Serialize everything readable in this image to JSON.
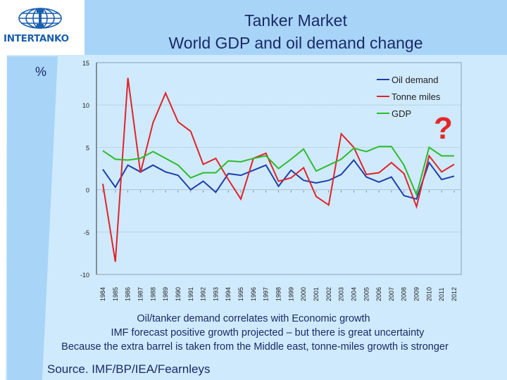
{
  "header": {
    "logo_text": "INTERTANKO",
    "title_line1": "Tanker Market",
    "title_line2": "World GDP and oil demand change"
  },
  "unit_label": "%",
  "annotation_mark": "?",
  "notes": [
    "Oil/tanker demand correlates with Economic growth",
    "IMF forecast positive growth projected – but there is great uncertainty",
    "Because the extra barrel is taken from the Middle east, tonne-miles growth is stronger"
  ],
  "source": "Source. IMF/BP/IEA/Fearnleys",
  "chart_data": {
    "type": "line",
    "title": "",
    "xlabel": "",
    "ylabel": "%",
    "ylim": [
      -10,
      15
    ],
    "yticks": [
      -10,
      -5,
      0,
      5,
      10,
      15
    ],
    "grid": "horizontal",
    "legend_position": "top-right",
    "x": [
      "1984",
      "1985",
      "1986",
      "1987",
      "1988",
      "1989",
      "1990",
      "1991",
      "1992",
      "1993",
      "1994",
      "1995",
      "1996",
      "1997",
      "1998",
      "1999",
      "2000",
      "2001",
      "2002",
      "2003",
      "2004",
      "2005",
      "2006",
      "2007",
      "2008",
      "2009",
      "2010",
      "2011",
      "2012"
    ],
    "series": [
      {
        "name": "Oil demand",
        "color": "#1f3fa8",
        "values": [
          2.4,
          0.3,
          2.9,
          2.1,
          2.9,
          2.1,
          1.7,
          0.0,
          1.0,
          -0.3,
          1.9,
          1.7,
          2.3,
          2.9,
          0.4,
          2.3,
          1.1,
          0.8,
          1.1,
          1.8,
          3.5,
          1.5,
          0.9,
          1.5,
          -0.7,
          -1.1,
          3.2,
          1.2,
          1.6
        ]
      },
      {
        "name": "Tonne miles",
        "color": "#e0242b",
        "values": [
          0.7,
          -8.5,
          13.2,
          2.0,
          7.9,
          11.4,
          8.0,
          6.9,
          3.0,
          3.7,
          1.2,
          -1.1,
          3.7,
          4.3,
          1.0,
          1.4,
          2.6,
          -0.8,
          -1.8,
          6.6,
          5.0,
          1.8,
          2.0,
          3.2,
          1.9,
          -2.0,
          4.0,
          2.1,
          3.0
        ]
      },
      {
        "name": "GDP",
        "color": "#2dbb2d",
        "values": [
          4.6,
          3.6,
          3.5,
          3.7,
          4.5,
          3.7,
          2.9,
          1.4,
          2.0,
          2.0,
          3.4,
          3.3,
          3.7,
          4.0,
          2.5,
          3.6,
          4.8,
          2.2,
          2.9,
          3.6,
          4.9,
          4.5,
          5.1,
          5.1,
          2.9,
          -0.6,
          5.0,
          4.0,
          4.0
        ]
      }
    ]
  }
}
